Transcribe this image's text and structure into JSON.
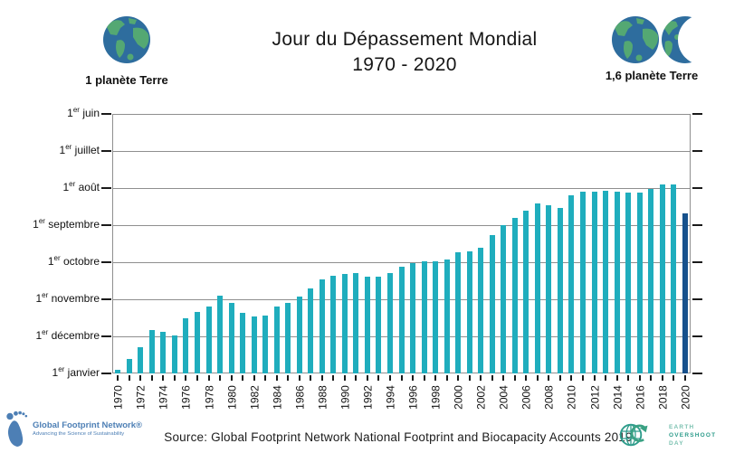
{
  "header": {
    "left_globe": {
      "label": "1 planète Terre"
    },
    "right_globe": {
      "label": "1,6 planète Terre"
    },
    "title_line1": "Jour du Dépassement Mondial",
    "title_line2": "1970 - 2020"
  },
  "chart_data": {
    "type": "bar",
    "title": "Jour du Dépassement Mondial 1970 - 2020",
    "description": "Date of Earth Overshoot Day per year; bars rise from 1er janvier (year end) upward, taller bar = earlier overshoot date",
    "x_axis": {
      "labeled_years": [
        "1970",
        "1972",
        "1974",
        "1976",
        "1978",
        "1980",
        "1982",
        "1984",
        "1986",
        "1988",
        "1990",
        "1992",
        "1994",
        "1996",
        "1998",
        "2000",
        "2002",
        "2004",
        "2006",
        "2008",
        "2010",
        "2012",
        "2014",
        "2016",
        "2018",
        "2020"
      ],
      "tick_every_year": true
    },
    "y_axis": {
      "tick_label_prefix": "1",
      "tick_label_sup": "er",
      "months_top_to_bottom": [
        "juin",
        "juillet",
        "août",
        "septembre",
        "octobre",
        "novembre",
        "décembre",
        "janvier"
      ],
      "inverted_date_axis": true,
      "grid": true
    },
    "points": [
      {
        "year": 1970,
        "month": 12,
        "day": 29
      },
      {
        "year": 1971,
        "month": 12,
        "day": 20
      },
      {
        "year": 1972,
        "month": 12,
        "day": 10
      },
      {
        "year": 1973,
        "month": 11,
        "day": 26
      },
      {
        "year": 1974,
        "month": 11,
        "day": 27
      },
      {
        "year": 1975,
        "month": 11,
        "day": 30
      },
      {
        "year": 1976,
        "month": 11,
        "day": 16
      },
      {
        "year": 1977,
        "month": 11,
        "day": 11
      },
      {
        "year": 1978,
        "month": 11,
        "day": 7
      },
      {
        "year": 1979,
        "month": 10,
        "day": 29
      },
      {
        "year": 1980,
        "month": 11,
        "day": 4
      },
      {
        "year": 1981,
        "month": 11,
        "day": 12
      },
      {
        "year": 1982,
        "month": 11,
        "day": 15
      },
      {
        "year": 1983,
        "month": 11,
        "day": 14
      },
      {
        "year": 1984,
        "month": 11,
        "day": 7
      },
      {
        "year": 1985,
        "month": 11,
        "day": 4
      },
      {
        "year": 1986,
        "month": 10,
        "day": 30
      },
      {
        "year": 1987,
        "month": 10,
        "day": 23
      },
      {
        "year": 1988,
        "month": 10,
        "day": 15
      },
      {
        "year": 1989,
        "month": 10,
        "day": 12
      },
      {
        "year": 1990,
        "month": 10,
        "day": 11
      },
      {
        "year": 1991,
        "month": 10,
        "day": 10
      },
      {
        "year": 1992,
        "month": 10,
        "day": 13
      },
      {
        "year": 1993,
        "month": 10,
        "day": 13
      },
      {
        "year": 1994,
        "month": 10,
        "day": 10
      },
      {
        "year": 1995,
        "month": 10,
        "day": 5
      },
      {
        "year": 1996,
        "month": 10,
        "day": 2
      },
      {
        "year": 1997,
        "month": 9,
        "day": 30
      },
      {
        "year": 1998,
        "month": 9,
        "day": 30
      },
      {
        "year": 1999,
        "month": 9,
        "day": 29
      },
      {
        "year": 2000,
        "month": 9,
        "day": 23
      },
      {
        "year": 2001,
        "month": 9,
        "day": 22
      },
      {
        "year": 2002,
        "month": 9,
        "day": 19
      },
      {
        "year": 2003,
        "month": 9,
        "day": 9
      },
      {
        "year": 2004,
        "month": 9,
        "day": 1
      },
      {
        "year": 2005,
        "month": 8,
        "day": 26
      },
      {
        "year": 2006,
        "month": 8,
        "day": 20
      },
      {
        "year": 2007,
        "month": 8,
        "day": 14
      },
      {
        "year": 2008,
        "month": 8,
        "day": 15
      },
      {
        "year": 2009,
        "month": 8,
        "day": 18
      },
      {
        "year": 2010,
        "month": 8,
        "day": 7
      },
      {
        "year": 2011,
        "month": 8,
        "day": 4
      },
      {
        "year": 2012,
        "month": 8,
        "day": 4
      },
      {
        "year": 2013,
        "month": 8,
        "day": 3
      },
      {
        "year": 2014,
        "month": 8,
        "day": 4
      },
      {
        "year": 2015,
        "month": 8,
        "day": 5
      },
      {
        "year": 2016,
        "month": 8,
        "day": 5
      },
      {
        "year": 2017,
        "month": 8,
        "day": 2
      },
      {
        "year": 2018,
        "month": 7,
        "day": 29
      },
      {
        "year": 2019,
        "month": 7,
        "day": 29
      },
      {
        "year": 2020,
        "month": 8,
        "day": 22
      }
    ],
    "highlight_year": 2020,
    "colors": {
      "bar": "#1fadbd",
      "highlight_bar": "#17518c",
      "grid": "#8f8f8f",
      "tick": "#1a1a1a",
      "globe_ocean": "#2e6d9e",
      "globe_land": "#54a873"
    },
    "legend_position": "none"
  },
  "footer": {
    "source": "Source: Global Footprint Network National Footprint and Biocapacity Accounts 2019",
    "gfn_logo": {
      "name": "Global Footprint Network®",
      "tagline": "Advancing the Science of Sustainability"
    },
    "eod_logo": {
      "line1": "EARTH",
      "line2": "OVERSHOOT",
      "line3": "DAY"
    }
  }
}
